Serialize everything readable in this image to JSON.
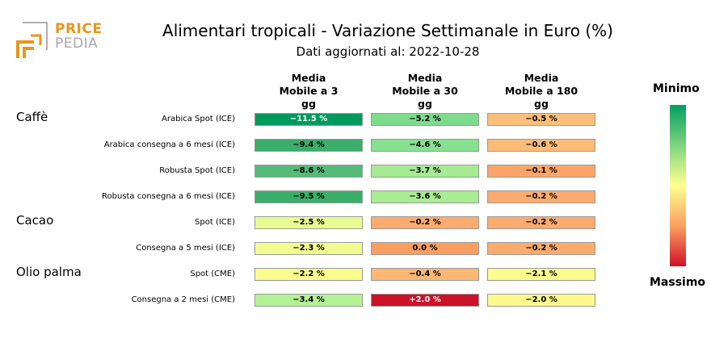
{
  "logo": {
    "word1": "PRICE",
    "word2": "PEDIA"
  },
  "title": "Alimentari tropicali - Variazione Settimanale in Euro (%)",
  "subtitle": "Dati aggiornati al: 2022-10-28",
  "columns": [
    {
      "lines": [
        "Media",
        "Mobile a 3",
        "gg"
      ]
    },
    {
      "lines": [
        "Media",
        "Mobile a 30",
        "gg"
      ]
    },
    {
      "lines": [
        "Media",
        "Mobile a 180",
        "gg"
      ]
    }
  ],
  "groups": [
    "Caffè",
    "Cacao",
    "Olio palma"
  ],
  "legend": {
    "min_label": "Minimo",
    "max_label": "Massimo"
  },
  "chart_data": {
    "type": "heatmap",
    "title": "Alimentari tropicali - Variazione Settimanale in Euro (%)",
    "subtitle": "Dati aggiornati al: 2022-10-28",
    "columns": [
      "Media Mobile a 3 gg",
      "Media Mobile a 30 gg",
      "Media Mobile a 180 gg"
    ],
    "rows": [
      {
        "group": "Caffè",
        "label": "Arabica Spot (ICE)",
        "values": [
          "−11.5 %",
          "−5.2 %",
          "−0.5 %"
        ],
        "colors": [
          "#009a5c",
          "#7ddc8c",
          "#fcbf7a"
        ]
      },
      {
        "group": "",
        "label": "Arabica consegna a 6 mesi (ICE)",
        "values": [
          "−9.4 %",
          "−4.6 %",
          "−0.6 %"
        ],
        "colors": [
          "#3aae6a",
          "#86e090",
          "#fcbc78"
        ]
      },
      {
        "group": "",
        "label": "Robusta Spot (ICE)",
        "values": [
          "−8.6 %",
          "−3.7 %",
          "−0.1 %"
        ],
        "colors": [
          "#55bb78",
          "#a4eb92",
          "#fba56a"
        ]
      },
      {
        "group": "",
        "label": "Robusta consegna a 6 mesi (ICE)",
        "values": [
          "−9.5 %",
          "−3.6 %",
          "−0.2 %"
        ],
        "colors": [
          "#3aae6a",
          "#a8ec94",
          "#fbab6e"
        ]
      },
      {
        "group": "Cacao",
        "label": "Spot (ICE)",
        "values": [
          "−2.5 %",
          "−0.2 %",
          "−0.2 %"
        ],
        "colors": [
          "#e8fc92",
          "#fbab6e",
          "#fbab6e"
        ]
      },
      {
        "group": "",
        "label": "Consegna a 5 mesi (ICE)",
        "values": [
          "−2.3 %",
          "0.0 %",
          "−0.2 %"
        ],
        "colors": [
          "#f2fc90",
          "#fa9e62",
          "#fbab6e"
        ]
      },
      {
        "group": "Olio palma",
        "label": "Spot (CME)",
        "values": [
          "−2.2 %",
          "−0.4 %",
          "−2.1 %"
        ],
        "colors": [
          "#fafc8e",
          "#fbb874",
          "#fcfc8e"
        ]
      },
      {
        "group": "",
        "label": "Consegna a 2 mesi (CME)",
        "values": [
          "−3.4 %",
          "+2.0 %",
          "−2.0 %"
        ],
        "colors": [
          "#b4f094",
          "#cc1228",
          "#fcf88c"
        ]
      }
    ]
  }
}
